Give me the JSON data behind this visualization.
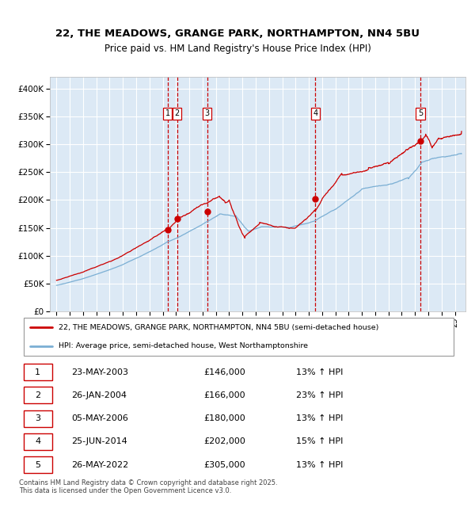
{
  "title1": "22, THE MEADOWS, GRANGE PARK, NORTHAMPTON, NN4 5BU",
  "title2": "Price paid vs. HM Land Registry's House Price Index (HPI)",
  "background_color": "#dce9f5",
  "plot_bg_color": "#dce9f5",
  "grid_color": "#ffffff",
  "red_line_color": "#cc0000",
  "blue_line_color": "#7bafd4",
  "vline_color": "#cc0000",
  "marker_color": "#cc0000",
  "legend_label_red": "22, THE MEADOWS, GRANGE PARK, NORTHAMPTON, NN4 5BU (semi-detached house)",
  "legend_label_blue": "HPI: Average price, semi-detached house, West Northamptonshire",
  "footer": "Contains HM Land Registry data © Crown copyright and database right 2025.\nThis data is licensed under the Open Government Licence v3.0.",
  "transactions": [
    {
      "num": 1,
      "date": "23-MAY-2003",
      "price": 146000,
      "hpi_change": "13% ↑ HPI",
      "year": 2003.38
    },
    {
      "num": 2,
      "date": "26-JAN-2004",
      "price": 166000,
      "hpi_change": "23% ↑ HPI",
      "year": 2004.07
    },
    {
      "num": 3,
      "date": "05-MAY-2006",
      "price": 180000,
      "hpi_change": "13% ↑ HPI",
      "year": 2006.34
    },
    {
      "num": 4,
      "date": "25-JUN-2014",
      "price": 202000,
      "hpi_change": "15% ↑ HPI",
      "year": 2014.48
    },
    {
      "num": 5,
      "date": "26-MAY-2022",
      "price": 305000,
      "hpi_change": "13% ↑ HPI",
      "year": 2022.4
    }
  ],
  "ylim": [
    0,
    420000
  ],
  "xlim": [
    1994.5,
    2025.8
  ],
  "yticks": [
    0,
    50000,
    100000,
    150000,
    200000,
    250000,
    300000,
    350000,
    400000
  ],
  "ytick_labels": [
    "£0",
    "£50K",
    "£100K",
    "£150K",
    "£200K",
    "£250K",
    "£300K",
    "£350K",
    "£400K"
  ],
  "xticks": [
    1995,
    1996,
    1997,
    1998,
    1999,
    2000,
    2001,
    2002,
    2003,
    2004,
    2005,
    2006,
    2007,
    2008,
    2009,
    2010,
    2011,
    2012,
    2013,
    2014,
    2015,
    2016,
    2017,
    2018,
    2019,
    2020,
    2021,
    2022,
    2023,
    2024,
    2025
  ]
}
